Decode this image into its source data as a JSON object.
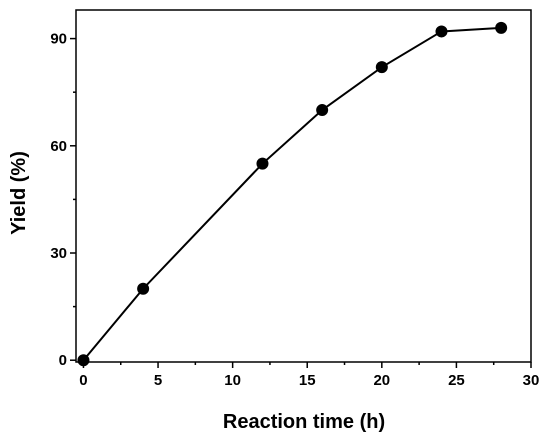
{
  "chart_data": {
    "type": "line",
    "title": "",
    "xlabel": "Reaction time (h)",
    "ylabel": "Yield (%)",
    "xlim": [
      -0.5,
      30
    ],
    "ylim": [
      -0.5,
      98
    ],
    "xticks": [
      0,
      5,
      10,
      15,
      20,
      25,
      30
    ],
    "yticks": [
      0,
      30,
      60,
      90
    ],
    "grid": false,
    "legend": "none",
    "series": [
      {
        "x": [
          0,
          4,
          12,
          16,
          20,
          24,
          28
        ],
        "y": [
          0,
          20,
          55,
          70,
          82,
          92,
          93
        ],
        "color": "#000000",
        "marker": "circle"
      }
    ]
  }
}
